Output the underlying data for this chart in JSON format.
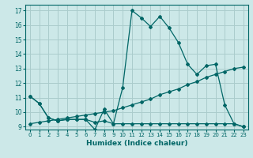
{
  "xlabel": "Humidex (Indice chaleur)",
  "bg_color": "#cce8e8",
  "grid_color": "#aacccc",
  "line_color": "#006666",
  "xlim": [
    -0.5,
    23.5
  ],
  "ylim": [
    8.8,
    17.4
  ],
  "xticks": [
    0,
    1,
    2,
    3,
    4,
    5,
    6,
    7,
    8,
    9,
    10,
    11,
    12,
    13,
    14,
    15,
    16,
    17,
    18,
    19,
    20,
    21,
    22,
    23
  ],
  "yticks": [
    9,
    10,
    11,
    12,
    13,
    14,
    15,
    16,
    17
  ],
  "line1_x": [
    0,
    1,
    2,
    3,
    4,
    5,
    6,
    7,
    8,
    9,
    10,
    11,
    12,
    13,
    14,
    15,
    16,
    17,
    18,
    19,
    20,
    21,
    22,
    23
  ],
  "line1_y": [
    11.1,
    10.6,
    9.6,
    9.4,
    9.5,
    9.5,
    9.5,
    9.3,
    9.4,
    9.2,
    9.2,
    9.2,
    9.2,
    9.2,
    9.2,
    9.2,
    9.2,
    9.2,
    9.2,
    9.2,
    9.2,
    9.2,
    9.2,
    9.0
  ],
  "line2_x": [
    0,
    1,
    2,
    3,
    4,
    5,
    6,
    7,
    8,
    9,
    10,
    11,
    12,
    13,
    14,
    15,
    16,
    17,
    18,
    19,
    20,
    21,
    22,
    23
  ],
  "line2_y": [
    11.1,
    10.6,
    9.6,
    9.4,
    9.5,
    9.5,
    9.5,
    8.8,
    10.2,
    9.2,
    11.7,
    17.0,
    16.5,
    15.9,
    16.6,
    15.8,
    14.8,
    13.3,
    12.6,
    13.2,
    13.3,
    10.5,
    9.2,
    9.0
  ],
  "line3_x": [
    0,
    1,
    2,
    3,
    4,
    5,
    6,
    7,
    8,
    9,
    10,
    11,
    12,
    13,
    14,
    15,
    16,
    17,
    18,
    19,
    20,
    21,
    22,
    23
  ],
  "line3_y": [
    9.2,
    9.3,
    9.4,
    9.5,
    9.6,
    9.7,
    9.8,
    9.9,
    10.0,
    10.1,
    10.3,
    10.5,
    10.7,
    10.9,
    11.2,
    11.4,
    11.6,
    11.9,
    12.1,
    12.4,
    12.6,
    12.8,
    13.0,
    13.1
  ]
}
